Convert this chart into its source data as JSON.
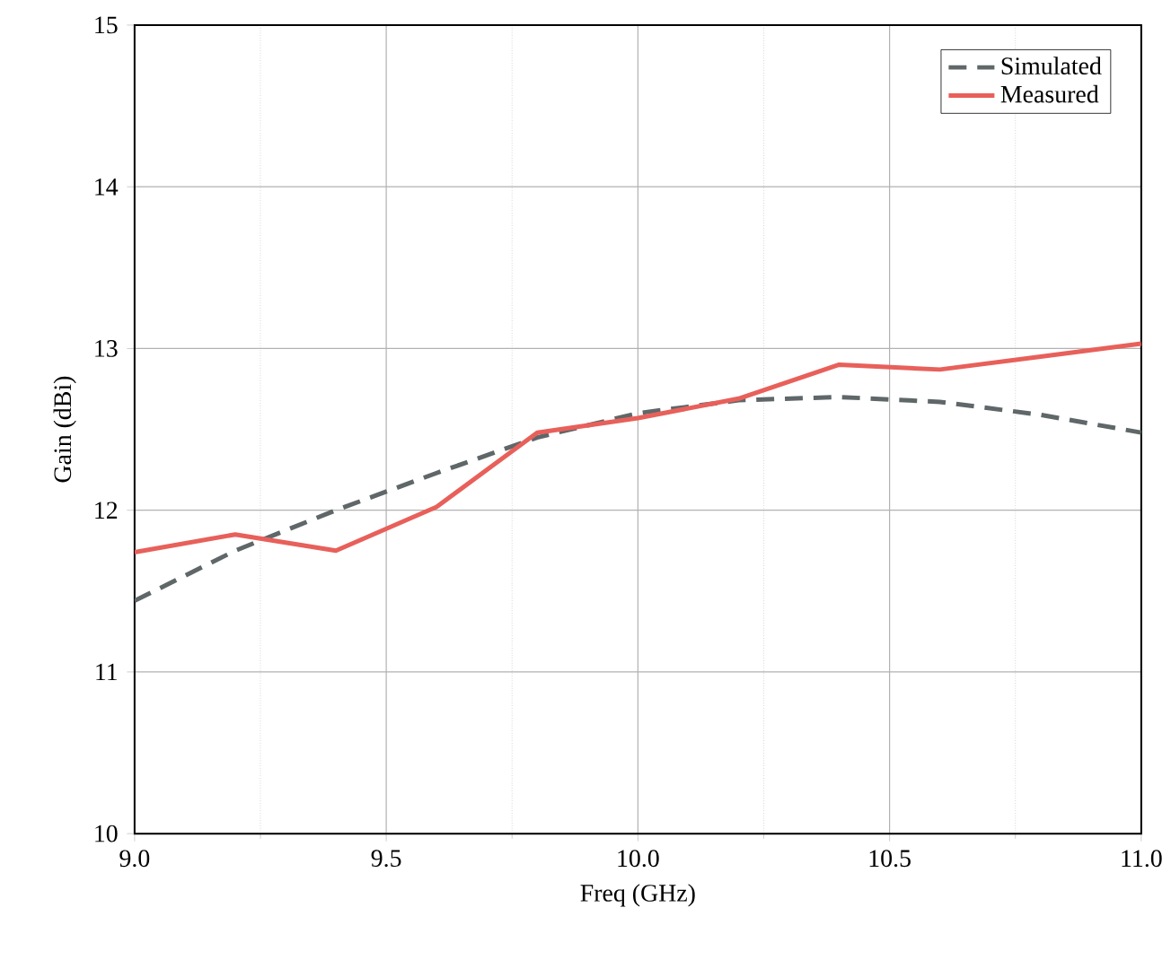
{
  "chart_data": {
    "type": "line",
    "xlabel": "Freq (GHz)",
    "ylabel": "Gain (dBi)",
    "x": [
      9.0,
      9.2,
      9.4,
      9.6,
      9.8,
      10.0,
      10.2,
      10.4,
      10.6,
      10.8,
      11.0
    ],
    "series": [
      {
        "name": "Simulated",
        "color": "#5f6769",
        "line_style": "dashed",
        "values": [
          11.44,
          11.75,
          12.0,
          12.23,
          12.45,
          12.6,
          12.68,
          12.7,
          12.67,
          12.59,
          12.48
        ]
      },
      {
        "name": "Measured",
        "color": "#e8605a",
        "line_style": "solid",
        "values": [
          11.74,
          11.85,
          11.75,
          12.02,
          12.48,
          12.57,
          12.69,
          12.9,
          12.87,
          12.95,
          13.03
        ]
      }
    ],
    "xlim": [
      9.0,
      11.0
    ],
    "ylim": [
      10,
      15
    ],
    "xticks": [
      {
        "value": 9.0,
        "label": "9.0"
      },
      {
        "value": 9.5,
        "label": "9.5"
      },
      {
        "value": 10.0,
        "label": "10.0"
      },
      {
        "value": 10.5,
        "label": "10.5"
      },
      {
        "value": 11.0,
        "label": "11.0"
      }
    ],
    "yticks": [
      10,
      11,
      12,
      13,
      14,
      15
    ],
    "grid": true,
    "legend": "top right",
    "marker": "none"
  }
}
